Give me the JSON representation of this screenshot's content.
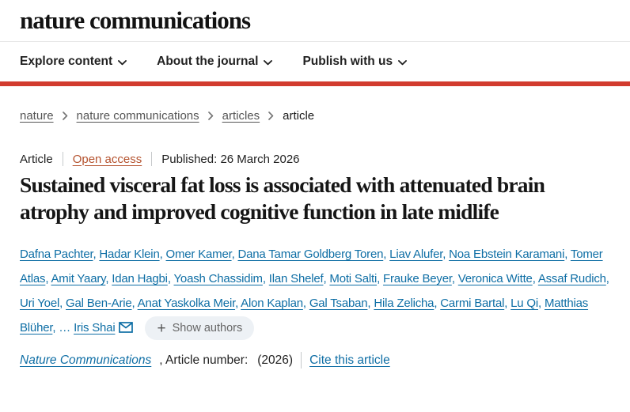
{
  "header": {
    "logo": "nature communications",
    "nav": [
      {
        "label": "Explore content"
      },
      {
        "label": "About the journal"
      },
      {
        "label": "Publish with us"
      }
    ]
  },
  "breadcrumb": {
    "items": [
      {
        "label": "nature",
        "link": true
      },
      {
        "label": "nature communications",
        "link": true
      },
      {
        "label": "articles",
        "link": true
      },
      {
        "label": "article",
        "link": false
      }
    ]
  },
  "meta": {
    "type": "Article",
    "access": "Open access",
    "published": "Published: 26 March 2026"
  },
  "title": "Sustained visceral fat loss is associated with attenuated brain atrophy and improved cognitive function in late midlife",
  "authors": {
    "names": [
      "Dafna Pachter",
      "Hadar Klein",
      "Omer Kamer",
      "Dana Tamar Goldberg Toren",
      "Liav Alufer",
      "Noa Ebstein Karamani",
      "Tomer Atlas",
      "Amit Yaary",
      "Idan Hagbi",
      "Yoash Chassidim",
      "Ilan Shelef",
      "Moti Salti",
      "Frauke Beyer",
      "Veronica Witte",
      "Assaf Rudich",
      "Uri Yoel",
      "Gal Ben-Arie",
      "Anat Yaskolka Meir",
      "Alon Kaplan",
      "Gal Tsaban",
      "Hila Zelicha",
      "Carmi Bartal",
      "Lu Qi",
      "Matthias Blüher"
    ],
    "ellipsis": "…",
    "last_author": "Iris Shai",
    "show_authors_label": "Show authors"
  },
  "citation": {
    "journal": "Nature Communications",
    "article_number_label": ", Article number:",
    "year": "(2026)",
    "cite_link": "Cite this article"
  },
  "icons": {
    "chevron_down": "⌄",
    "chevron_right": "›",
    "envelope": "✉",
    "plus": "+"
  },
  "colors": {
    "link_blue": "#0e6ea5",
    "accent_red": "#d23b2e",
    "open_access": "#b5532f"
  }
}
